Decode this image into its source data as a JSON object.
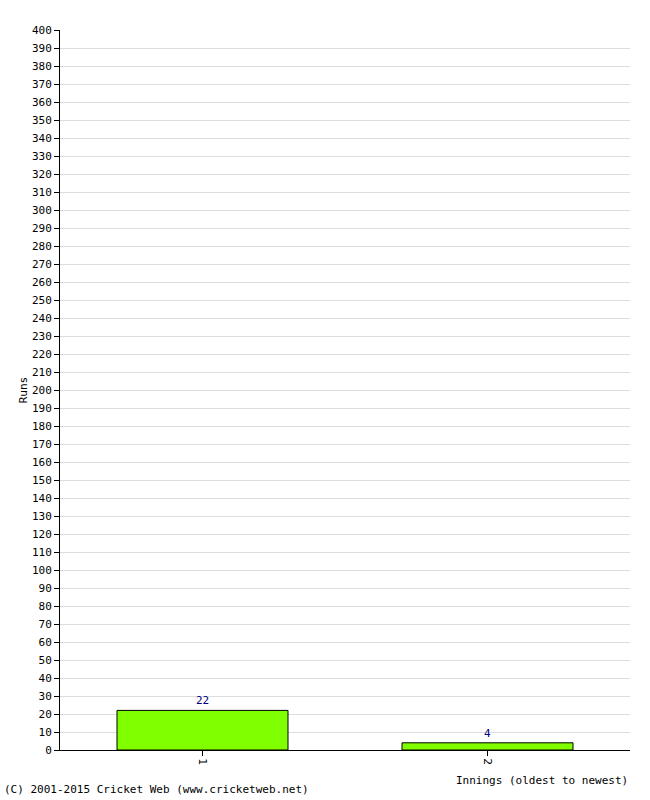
{
  "chart_data": {
    "type": "bar",
    "y_label": "Runs",
    "x_label": "Innings (oldest to newest)",
    "categories": [
      "1",
      "2"
    ],
    "values": [
      22,
      4
    ],
    "color": "#80ff00",
    "data_labels": true,
    "grid": true,
    "ylim": [
      0,
      400
    ],
    "yticks": [
      0,
      10,
      20,
      30,
      40,
      50,
      60,
      70,
      80,
      90,
      100,
      110,
      120,
      130,
      140,
      150,
      160,
      170,
      180,
      190,
      200,
      210,
      220,
      230,
      240,
      250,
      260,
      270,
      280,
      290,
      300,
      310,
      320,
      330,
      340,
      350,
      360,
      370,
      380,
      390,
      400
    ],
    "annotations": [
      {
        "text": "(C) 2001-2015 Cricket Web (www.cricketweb.net)"
      }
    ]
  }
}
